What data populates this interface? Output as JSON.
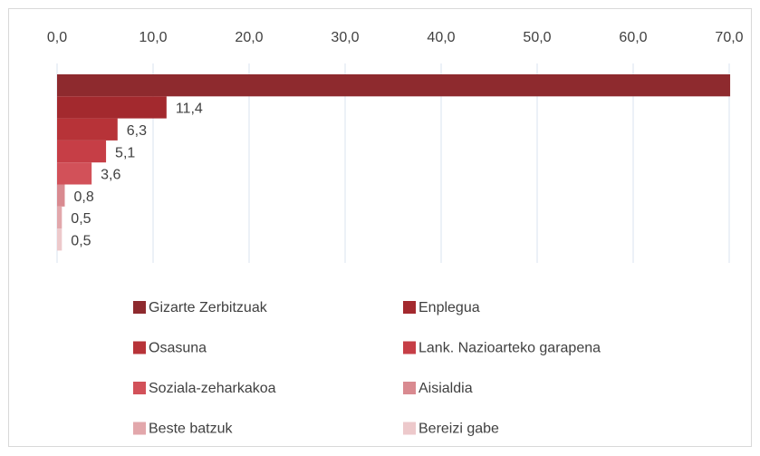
{
  "chart_data": {
    "type": "bar",
    "xlim": [
      0,
      70
    ],
    "xticks": [
      {
        "value": 0,
        "label": "0,0"
      },
      {
        "value": 10,
        "label": "10,0"
      },
      {
        "value": 20,
        "label": "20,0"
      },
      {
        "value": 30,
        "label": "30,0"
      },
      {
        "value": 40,
        "label": "40,0"
      },
      {
        "value": 50,
        "label": "50,0"
      },
      {
        "value": 60,
        "label": "60,0"
      },
      {
        "value": 70,
        "label": "70,0"
      }
    ],
    "grid": true,
    "legend": "bottom",
    "series": [
      {
        "name": "Gizarte Zerbitzuak",
        "color": "#8e2a2e",
        "values": [
          70.1
        ]
      },
      {
        "name": "Enplegua",
        "color": "#a3292e",
        "values": [
          11.4
        ],
        "value_labels": [
          "11,4"
        ]
      },
      {
        "name": "Osasuna",
        "color": "#b73338",
        "values": [
          6.3
        ],
        "value_labels": [
          "6,3"
        ]
      },
      {
        "name": "Lank. Nazioarteko garapena",
        "color": "#c63e46",
        "values": [
          5.1
        ],
        "value_labels": [
          "5,1"
        ]
      },
      {
        "name": "Soziala-zeharkakoa",
        "color": "#d25159",
        "values": [
          3.6
        ],
        "value_labels": [
          "3,6"
        ]
      },
      {
        "name": "Aisialdia",
        "color": "#d98a90",
        "values": [
          0.8
        ],
        "value_labels": [
          "0,8"
        ]
      },
      {
        "name": "Beste batzuk",
        "color": "#e2a7ab",
        "values": [
          0.5
        ],
        "value_labels": [
          "0,5"
        ]
      },
      {
        "name": "Bereizi gabe",
        "color": "#edc9cb",
        "values": [
          0.5
        ],
        "value_labels": [
          "0,5"
        ]
      }
    ]
  }
}
